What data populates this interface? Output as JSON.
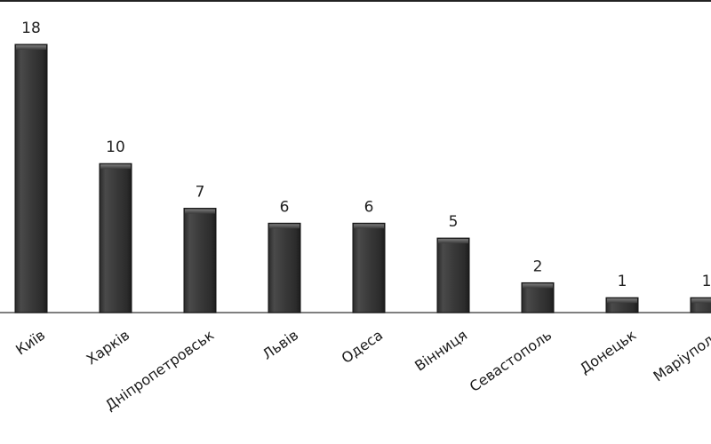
{
  "chart_data": {
    "type": "bar",
    "title": "",
    "xlabel": "",
    "ylabel": "",
    "categories": [
      "Київ",
      "Харків",
      "Дніпропетровськ",
      "Львів",
      "Одеса",
      "Вінниця",
      "Севастополь",
      "Донецьк",
      "Маріуполь"
    ],
    "values": [
      18,
      10,
      7,
      6,
      6,
      5,
      2,
      1,
      1
    ],
    "ylim": [
      0,
      18
    ],
    "grid": false,
    "legend": "none",
    "bar_color": "#3a3a3a"
  }
}
